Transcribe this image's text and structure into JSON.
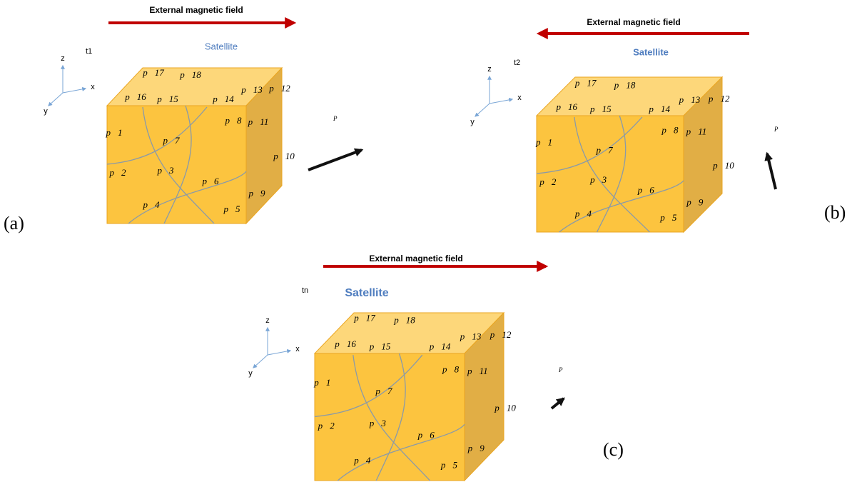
{
  "panels": [
    {
      "label": "(a)",
      "field": "External magnetic field",
      "time": "t1",
      "satellite": "Satellite",
      "axes": [
        "z",
        "x",
        "y"
      ],
      "moment": "P⃗",
      "particles": [
        "p⃗1",
        "p⃗2",
        "p⃗3",
        "p⃗4",
        "p⃗5",
        "p⃗6",
        "p⃗7",
        "p⃗8",
        "p⃗9",
        "p⃗10",
        "p⃗11",
        "p⃗12",
        "p⃗13",
        "p⃗14",
        "p⃗15",
        "p⃗16",
        "p⃗17",
        "p⃗18"
      ]
    },
    {
      "label": "(b)",
      "field": "External magnetic field",
      "time": "t2",
      "satellite": "Satellite",
      "axes": [
        "z",
        "x",
        "y"
      ],
      "moment": "P⃗",
      "particles": [
        "p⃗1",
        "p⃗2",
        "p⃗3",
        "p⃗4",
        "p⃗5",
        "p⃗6",
        "p⃗7",
        "p⃗8",
        "p⃗9",
        "p⃗10",
        "p⃗11",
        "p⃗12",
        "p⃗13",
        "p⃗14",
        "p⃗15",
        "p⃗16",
        "p⃗17",
        "p⃗18"
      ]
    },
    {
      "label": "(c)",
      "field": "External magnetic field",
      "time": "tn",
      "satellite": "Satellite",
      "axes": [
        "z",
        "x",
        "y"
      ],
      "moment": "P⃗",
      "particles": [
        "p⃗1",
        "p⃗2",
        "p⃗3",
        "p⃗4",
        "p⃗5",
        "p⃗6",
        "p⃗7",
        "p⃗8",
        "p⃗9",
        "p⃗10",
        "p⃗11",
        "p⃗12",
        "p⃗13",
        "p⃗14",
        "p⃗15",
        "p⃗16",
        "p⃗17",
        "p⃗18"
      ]
    }
  ]
}
